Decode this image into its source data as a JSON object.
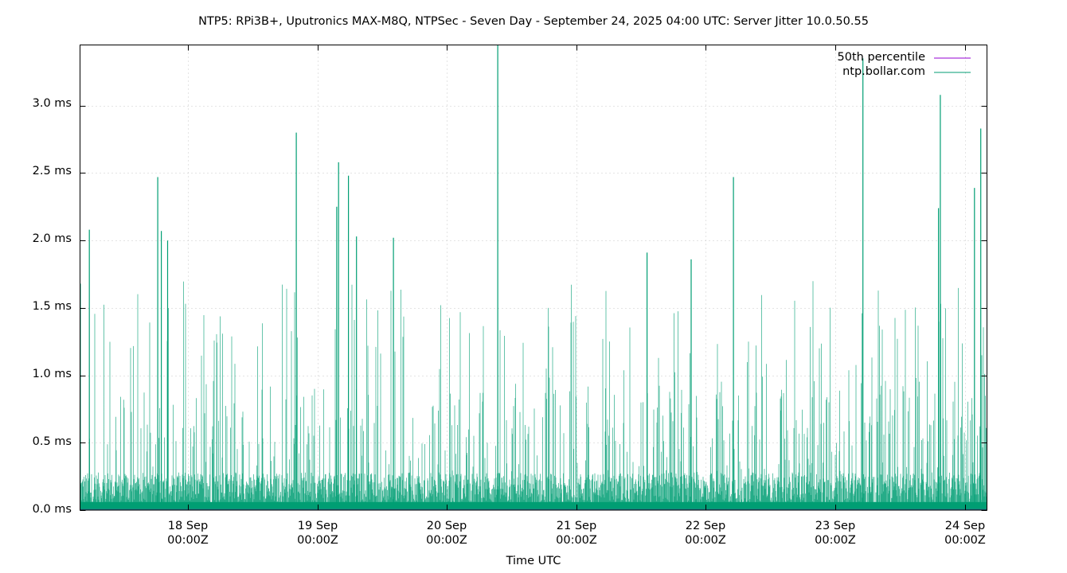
{
  "chart_data": {
    "type": "line",
    "title": "NTP5: RPi3B+, Uputronics MAX-M8Q, NTPSec - Seven Day - September 24, 2025 04:00 UTC: Server Jitter 10.0.50.55",
    "xlabel": "Time UTC",
    "ylabel": "",
    "ylim": [
      0.0,
      3.45
    ],
    "yticks": [
      "0.0 ms",
      "0.5 ms",
      "1.0 ms",
      "1.5 ms",
      "2.0 ms",
      "2.5 ms",
      "3.0 ms"
    ],
    "ytick_values": [
      0.0,
      0.5,
      1.0,
      1.5,
      2.0,
      2.5,
      3.0
    ],
    "xticks": [
      {
        "line1": "18 Sep",
        "line2": "00:00Z"
      },
      {
        "line1": "19 Sep",
        "line2": "00:00Z"
      },
      {
        "line1": "20 Sep",
        "line2": "00:00Z"
      },
      {
        "line1": "21 Sep",
        "line2": "00:00Z"
      },
      {
        "line1": "22 Sep",
        "line2": "00:00Z"
      },
      {
        "line1": "23 Sep",
        "line2": "00:00Z"
      },
      {
        "line1": "24 Sep",
        "line2": "00:00Z"
      }
    ],
    "xrange_days": [
      "17 Sep ~03:55Z",
      "24 Sep ~04:10Z"
    ],
    "grid": true,
    "legend_position": "top-right",
    "series": [
      {
        "name": "50th percentile",
        "color": "#9400d3",
        "value_ms": 0.0
      },
      {
        "name": "ntp.bollar.com",
        "color": "#009e73",
        "description": "Dense server jitter time series; baseline ~0.02-0.3 ms with frequent spikes to 1-2 ms",
        "notable_spikes_ms": [
          {
            "time": "17 Sep 04:00Z",
            "value": 1.68
          },
          {
            "time": "17 Sep 05:40Z",
            "value": 2.08
          },
          {
            "time": "17 Sep 18:20Z",
            "value": 2.47
          },
          {
            "time": "17 Sep 19:00Z",
            "value": 2.07
          },
          {
            "time": "17 Sep 20:10Z",
            "value": 2.0
          },
          {
            "time": "18 Sep 20:00Z",
            "value": 2.8
          },
          {
            "time": "19 Sep 03:30Z",
            "value": 2.25
          },
          {
            "time": "19 Sep 03:50Z",
            "value": 2.58
          },
          {
            "time": "19 Sep 05:40Z",
            "value": 2.48
          },
          {
            "time": "19 Sep 07:10Z",
            "value": 2.03
          },
          {
            "time": "19 Sep 14:00Z",
            "value": 2.02
          },
          {
            "time": "20 Sep 09:20Z",
            "value": 3.45
          },
          {
            "time": "21 Sep 13:00Z",
            "value": 1.91
          },
          {
            "time": "21 Sep 21:10Z",
            "value": 1.86
          },
          {
            "time": "22 Sep 05:00Z",
            "value": 2.47
          },
          {
            "time": "23 Sep 05:00Z",
            "value": 3.35
          },
          {
            "time": "23 Sep 19:00Z",
            "value": 2.24
          },
          {
            "time": "23 Sep 19:20Z",
            "value": 3.08
          },
          {
            "time": "24 Sep 01:40Z",
            "value": 2.39
          },
          {
            "time": "24 Sep 02:50Z",
            "value": 2.83
          }
        ]
      }
    ]
  },
  "legend": {
    "items": [
      {
        "label": "50th percentile",
        "color": "#9400d3"
      },
      {
        "label": "ntp.bollar.com",
        "color": "#009e73"
      }
    ]
  }
}
